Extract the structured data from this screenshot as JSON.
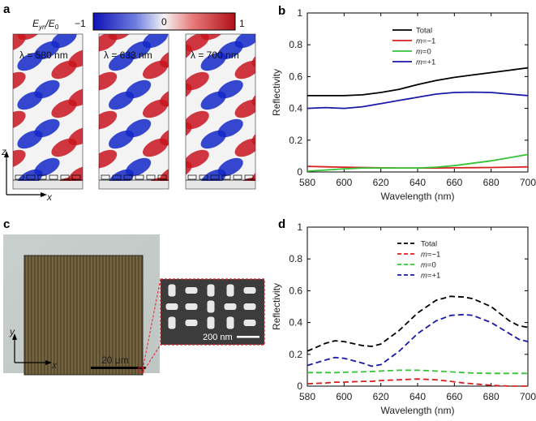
{
  "panel_letters": [
    "a",
    "b",
    "c",
    "d"
  ],
  "colorbar": {
    "label_main": "E",
    "label_sub": "yn",
    "label_den": "/E",
    "label_den_sub": "0",
    "min_label": "−1",
    "mid_label": "0",
    "max_label": "1"
  },
  "field_maps": [
    {
      "lambda_label": "λ = 580 nm"
    },
    {
      "lambda_label": "λ = 633 nm"
    },
    {
      "lambda_label": "λ = 700 nm"
    }
  ],
  "axis_labels_a": {
    "z": "z",
    "x": "x"
  },
  "micrograph": {
    "scale_bar": "20 μm",
    "inset_scale_bar": "200 nm",
    "y": "y",
    "x": "x"
  },
  "colors": {
    "black": "#000000",
    "red": "#d62020",
    "green": "#35c435",
    "blue": "#1a1aa8",
    "field_red": "#c8141e",
    "field_blue": "#1428c8"
  },
  "chart_data": [
    {
      "panel": "b",
      "type": "line",
      "xlabel": "Wavelength (nm)",
      "ylabel": "Reflectivity",
      "xlim": [
        580,
        700
      ],
      "ylim": [
        0,
        1
      ],
      "xticks": [
        580,
        600,
        620,
        640,
        660,
        680,
        700
      ],
      "yticks": [
        0,
        0.2,
        0.4,
        0.6,
        0.8,
        1
      ],
      "ytick_labels": [
        "0",
        "0.2",
        "0.4",
        "0.6",
        "0.8",
        "1"
      ],
      "legend_position": "top-center",
      "line_style": "solid",
      "x": [
        580,
        590,
        600,
        610,
        620,
        630,
        640,
        650,
        660,
        670,
        680,
        690,
        700
      ],
      "series": [
        {
          "name": "Total",
          "legend_pre": "",
          "legend_it": "",
          "legend_post": "Total",
          "color": "#000000",
          "values": [
            0.48,
            0.48,
            0.48,
            0.485,
            0.5,
            0.52,
            0.55,
            0.575,
            0.595,
            0.61,
            0.625,
            0.64,
            0.655
          ]
        },
        {
          "name": "m=−1",
          "legend_pre": "",
          "legend_it": "m",
          "legend_post": "=−1",
          "color": "#d62020",
          "values": [
            0.035,
            0.032,
            0.03,
            0.028,
            0.026,
            0.025,
            0.025,
            0.025,
            0.026,
            0.027,
            0.028,
            0.03,
            0.032
          ]
        },
        {
          "name": "m=0",
          "legend_pre": "",
          "legend_it": "m",
          "legend_post": "=0",
          "color": "#35c435",
          "values": [
            0.005,
            0.012,
            0.02,
            0.025,
            0.025,
            0.025,
            0.025,
            0.03,
            0.04,
            0.055,
            0.07,
            0.09,
            0.11
          ]
        },
        {
          "name": "m=+1",
          "legend_pre": "",
          "legend_it": "m",
          "legend_post": "=+1",
          "color": "#1a1aa8",
          "values": [
            0.4,
            0.405,
            0.4,
            0.41,
            0.43,
            0.45,
            0.47,
            0.49,
            0.5,
            0.502,
            0.5,
            0.49,
            0.48
          ]
        }
      ]
    },
    {
      "panel": "d",
      "type": "line",
      "xlabel": "Wavelength (nm)",
      "ylabel": "Reflectivity",
      "xlim": [
        580,
        700
      ],
      "ylim": [
        0,
        1
      ],
      "xticks": [
        580,
        600,
        620,
        640,
        660,
        680,
        700
      ],
      "yticks": [
        0,
        0.2,
        0.4,
        0.6,
        0.8,
        1
      ],
      "ytick_labels": [
        "0",
        "0.2",
        "0.4",
        "0.6",
        "0.8",
        "1"
      ],
      "legend_position": "top-center",
      "line_style": "dashed",
      "x": [
        580,
        590,
        595,
        600,
        610,
        615,
        620,
        630,
        640,
        650,
        658,
        665,
        670,
        680,
        690,
        695,
        700
      ],
      "series": [
        {
          "name": "Total",
          "legend_pre": "",
          "legend_it": "",
          "legend_post": "Total",
          "color": "#000000",
          "values": [
            0.22,
            0.27,
            0.285,
            0.28,
            0.255,
            0.25,
            0.265,
            0.35,
            0.46,
            0.54,
            0.565,
            0.56,
            0.55,
            0.5,
            0.41,
            0.38,
            0.37
          ]
        },
        {
          "name": "m=−1",
          "legend_pre": "",
          "legend_it": "m",
          "legend_post": "=−1",
          "color": "#d62020",
          "values": [
            0.015,
            0.02,
            0.025,
            0.025,
            0.03,
            0.03,
            0.035,
            0.04,
            0.045,
            0.04,
            0.03,
            0.02,
            0.015,
            0.005,
            0.0,
            0.0,
            0.0
          ]
        },
        {
          "name": "m=0",
          "legend_pre": "",
          "legend_it": "m",
          "legend_post": "=0",
          "color": "#35c435",
          "values": [
            0.085,
            0.085,
            0.085,
            0.087,
            0.09,
            0.092,
            0.095,
            0.1,
            0.1,
            0.095,
            0.09,
            0.085,
            0.082,
            0.08,
            0.08,
            0.08,
            0.08
          ]
        },
        {
          "name": "m=+1",
          "legend_pre": "",
          "legend_it": "m",
          "legend_post": "=+1",
          "color": "#1a1aa8",
          "values": [
            0.13,
            0.165,
            0.18,
            0.175,
            0.145,
            0.125,
            0.135,
            0.22,
            0.33,
            0.41,
            0.445,
            0.45,
            0.445,
            0.4,
            0.33,
            0.295,
            0.28
          ]
        }
      ]
    }
  ]
}
